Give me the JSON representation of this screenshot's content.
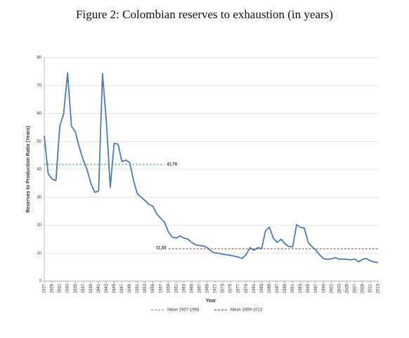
{
  "chart_data": {
    "type": "line",
    "title": "Figure 2: Colombian reserves to exhaustion (in years)",
    "x_label": "Year",
    "y_label": "Reserves to Production Ratio (Years)",
    "x": [
      1927,
      1928,
      1929,
      1930,
      1931,
      1932,
      1933,
      1934,
      1935,
      1936,
      1937,
      1938,
      1939,
      1940,
      1941,
      1942,
      1943,
      1944,
      1945,
      1946,
      1947,
      1948,
      1949,
      1950,
      1951,
      1952,
      1953,
      1954,
      1955,
      1956,
      1957,
      1958,
      1959,
      1960,
      1961,
      1962,
      1963,
      1964,
      1965,
      1966,
      1967,
      1968,
      1969,
      1970,
      1971,
      1972,
      1973,
      1974,
      1975,
      1976,
      1977,
      1978,
      1979,
      1980,
      1981,
      1982,
      1983,
      1984,
      1985,
      1986,
      1987,
      1988,
      1989,
      1990,
      1991,
      1992,
      1993,
      1994,
      1995,
      1996,
      1997,
      1998,
      1999,
      2000,
      2001,
      2002,
      2003,
      2004,
      2005,
      2006,
      2007,
      2008,
      2009,
      2010,
      2011,
      2012,
      2013
    ],
    "series": [
      {
        "color": "#4a7bb7",
        "values": [
          52,
          38.5,
          36.5,
          36,
          55.5,
          60,
          74.5,
          55.5,
          53.5,
          48,
          43.5,
          40,
          35,
          31.8,
          32.2,
          74.3,
          57,
          33.5,
          49.3,
          49,
          42.8,
          43.3,
          42.5,
          36,
          31.2,
          30,
          28.8,
          27.4,
          26.8,
          24,
          22.5,
          21,
          17.5,
          15.7,
          15.4,
          16.2,
          15.4,
          15,
          13.8,
          13,
          12.7,
          12.6,
          12,
          10.7,
          10,
          10,
          9.6,
          9.4,
          9.2,
          8.9,
          8.6,
          8.1,
          9.5,
          12,
          11,
          12,
          11.6,
          18,
          19.3,
          15.4,
          13.8,
          15,
          13.4,
          12.4,
          12.2,
          20.2,
          19.2,
          19,
          13.8,
          12.3,
          11,
          9.3,
          8,
          7.8,
          8,
          8.4,
          7.8,
          7.9,
          7.8,
          7.6,
          7.9,
          6.9,
          7.8,
          8.1,
          7.2,
          6.9,
          6.6
        ]
      }
    ],
    "reference_lines": [
      {
        "name": "Mean 1927-1958",
        "color": "#3a9a5a",
        "value": 41.76,
        "value_label": "41,76",
        "x": [
          1927,
          1958
        ]
      },
      {
        "name": "Mean 1959-2013",
        "color": "#8b1a1a",
        "value": 11.55,
        "value_label": "11,55",
        "x": [
          1959,
          2013
        ]
      }
    ],
    "xlim": [
      1927,
      2013
    ],
    "xticks": [
      1927,
      1929,
      1931,
      1933,
      1935,
      1937,
      1939,
      1941,
      1943,
      1945,
      1947,
      1949,
      1951,
      1953,
      1955,
      1957,
      1959,
      1961,
      1963,
      1965,
      1967,
      1969,
      1971,
      1973,
      1975,
      1977,
      1979,
      1981,
      1983,
      1985,
      1987,
      1989,
      1991,
      1993,
      1995,
      1997,
      1999,
      2001,
      2003,
      2005,
      2007,
      2009,
      2011,
      2013
    ],
    "ylim": [
      0,
      80
    ],
    "yticks": [
      0,
      10,
      20,
      30,
      40,
      50,
      60,
      70,
      80
    ],
    "grid": true
  }
}
